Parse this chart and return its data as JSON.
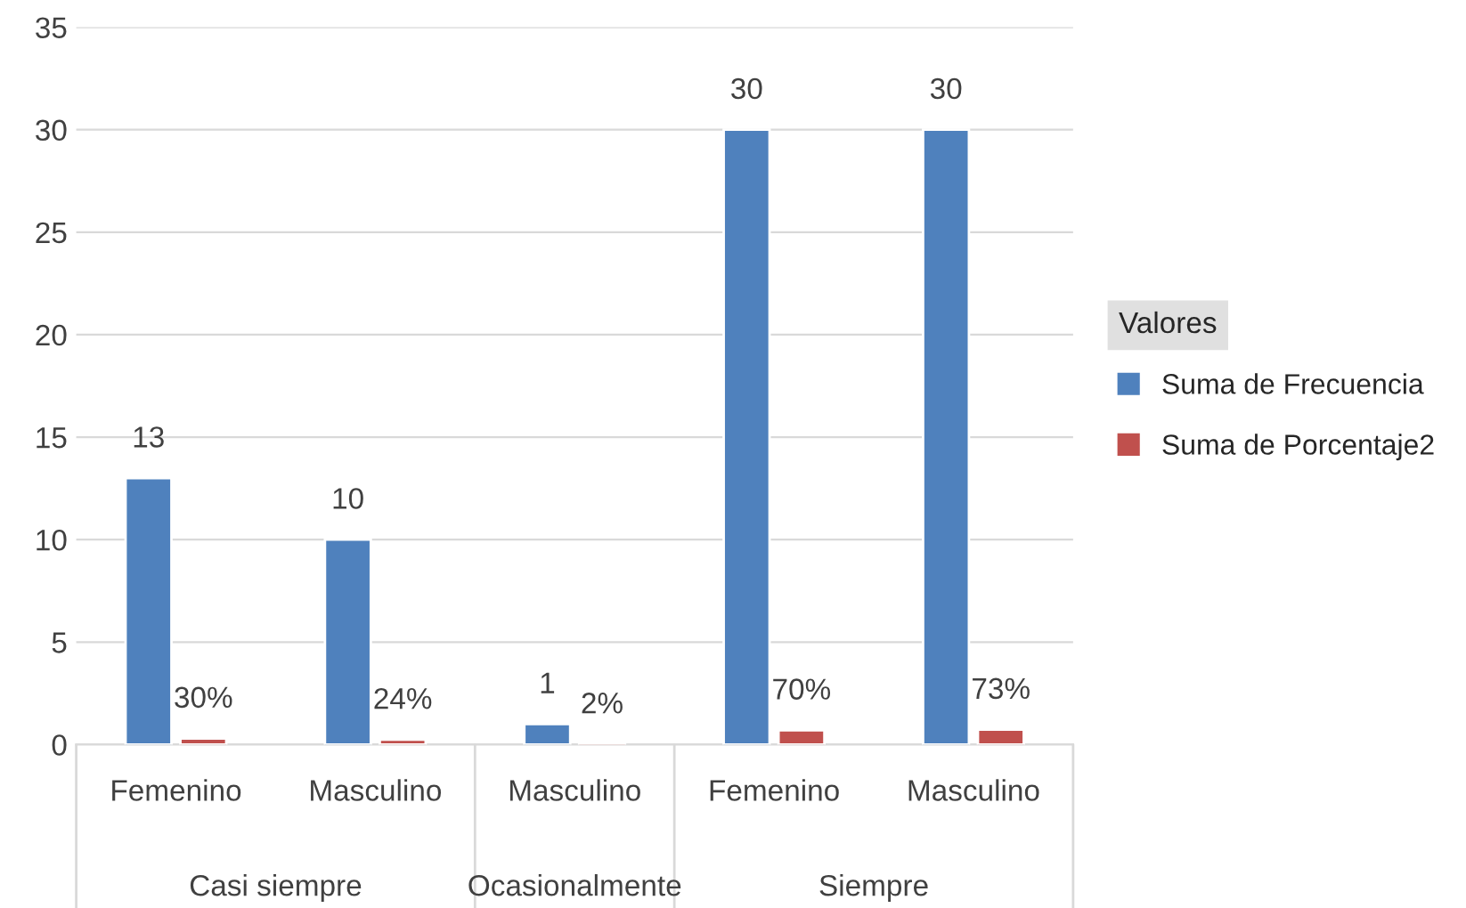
{
  "chart_data": {
    "type": "bar",
    "categories": [
      "Femenino",
      "Masculino",
      "Masculino",
      "Femenino",
      "Masculino"
    ],
    "series": [
      {
        "name": "Suma de Frecuencia",
        "color": "#4f81bd",
        "values": [
          13,
          10,
          1,
          30,
          30
        ],
        "value_labels": [
          "13",
          "10",
          "1",
          "30",
          "30"
        ]
      },
      {
        "name": "Suma de Porcentaje2",
        "color": "#c0504d",
        "values": [
          0.3,
          0.24,
          0.02,
          0.7,
          0.73
        ],
        "value_labels": [
          "30%",
          "24%",
          "2%",
          "70%",
          "73%"
        ]
      }
    ],
    "ylim": [
      0,
      35
    ],
    "yticks": [
      0,
      5,
      10,
      15,
      20,
      25,
      30,
      35
    ],
    "grid": "y",
    "legend": "right",
    "legend_title": "Valores",
    "annotations": [
      "Casi siempre",
      "Ocasionalmente",
      "Siempre"
    ]
  }
}
